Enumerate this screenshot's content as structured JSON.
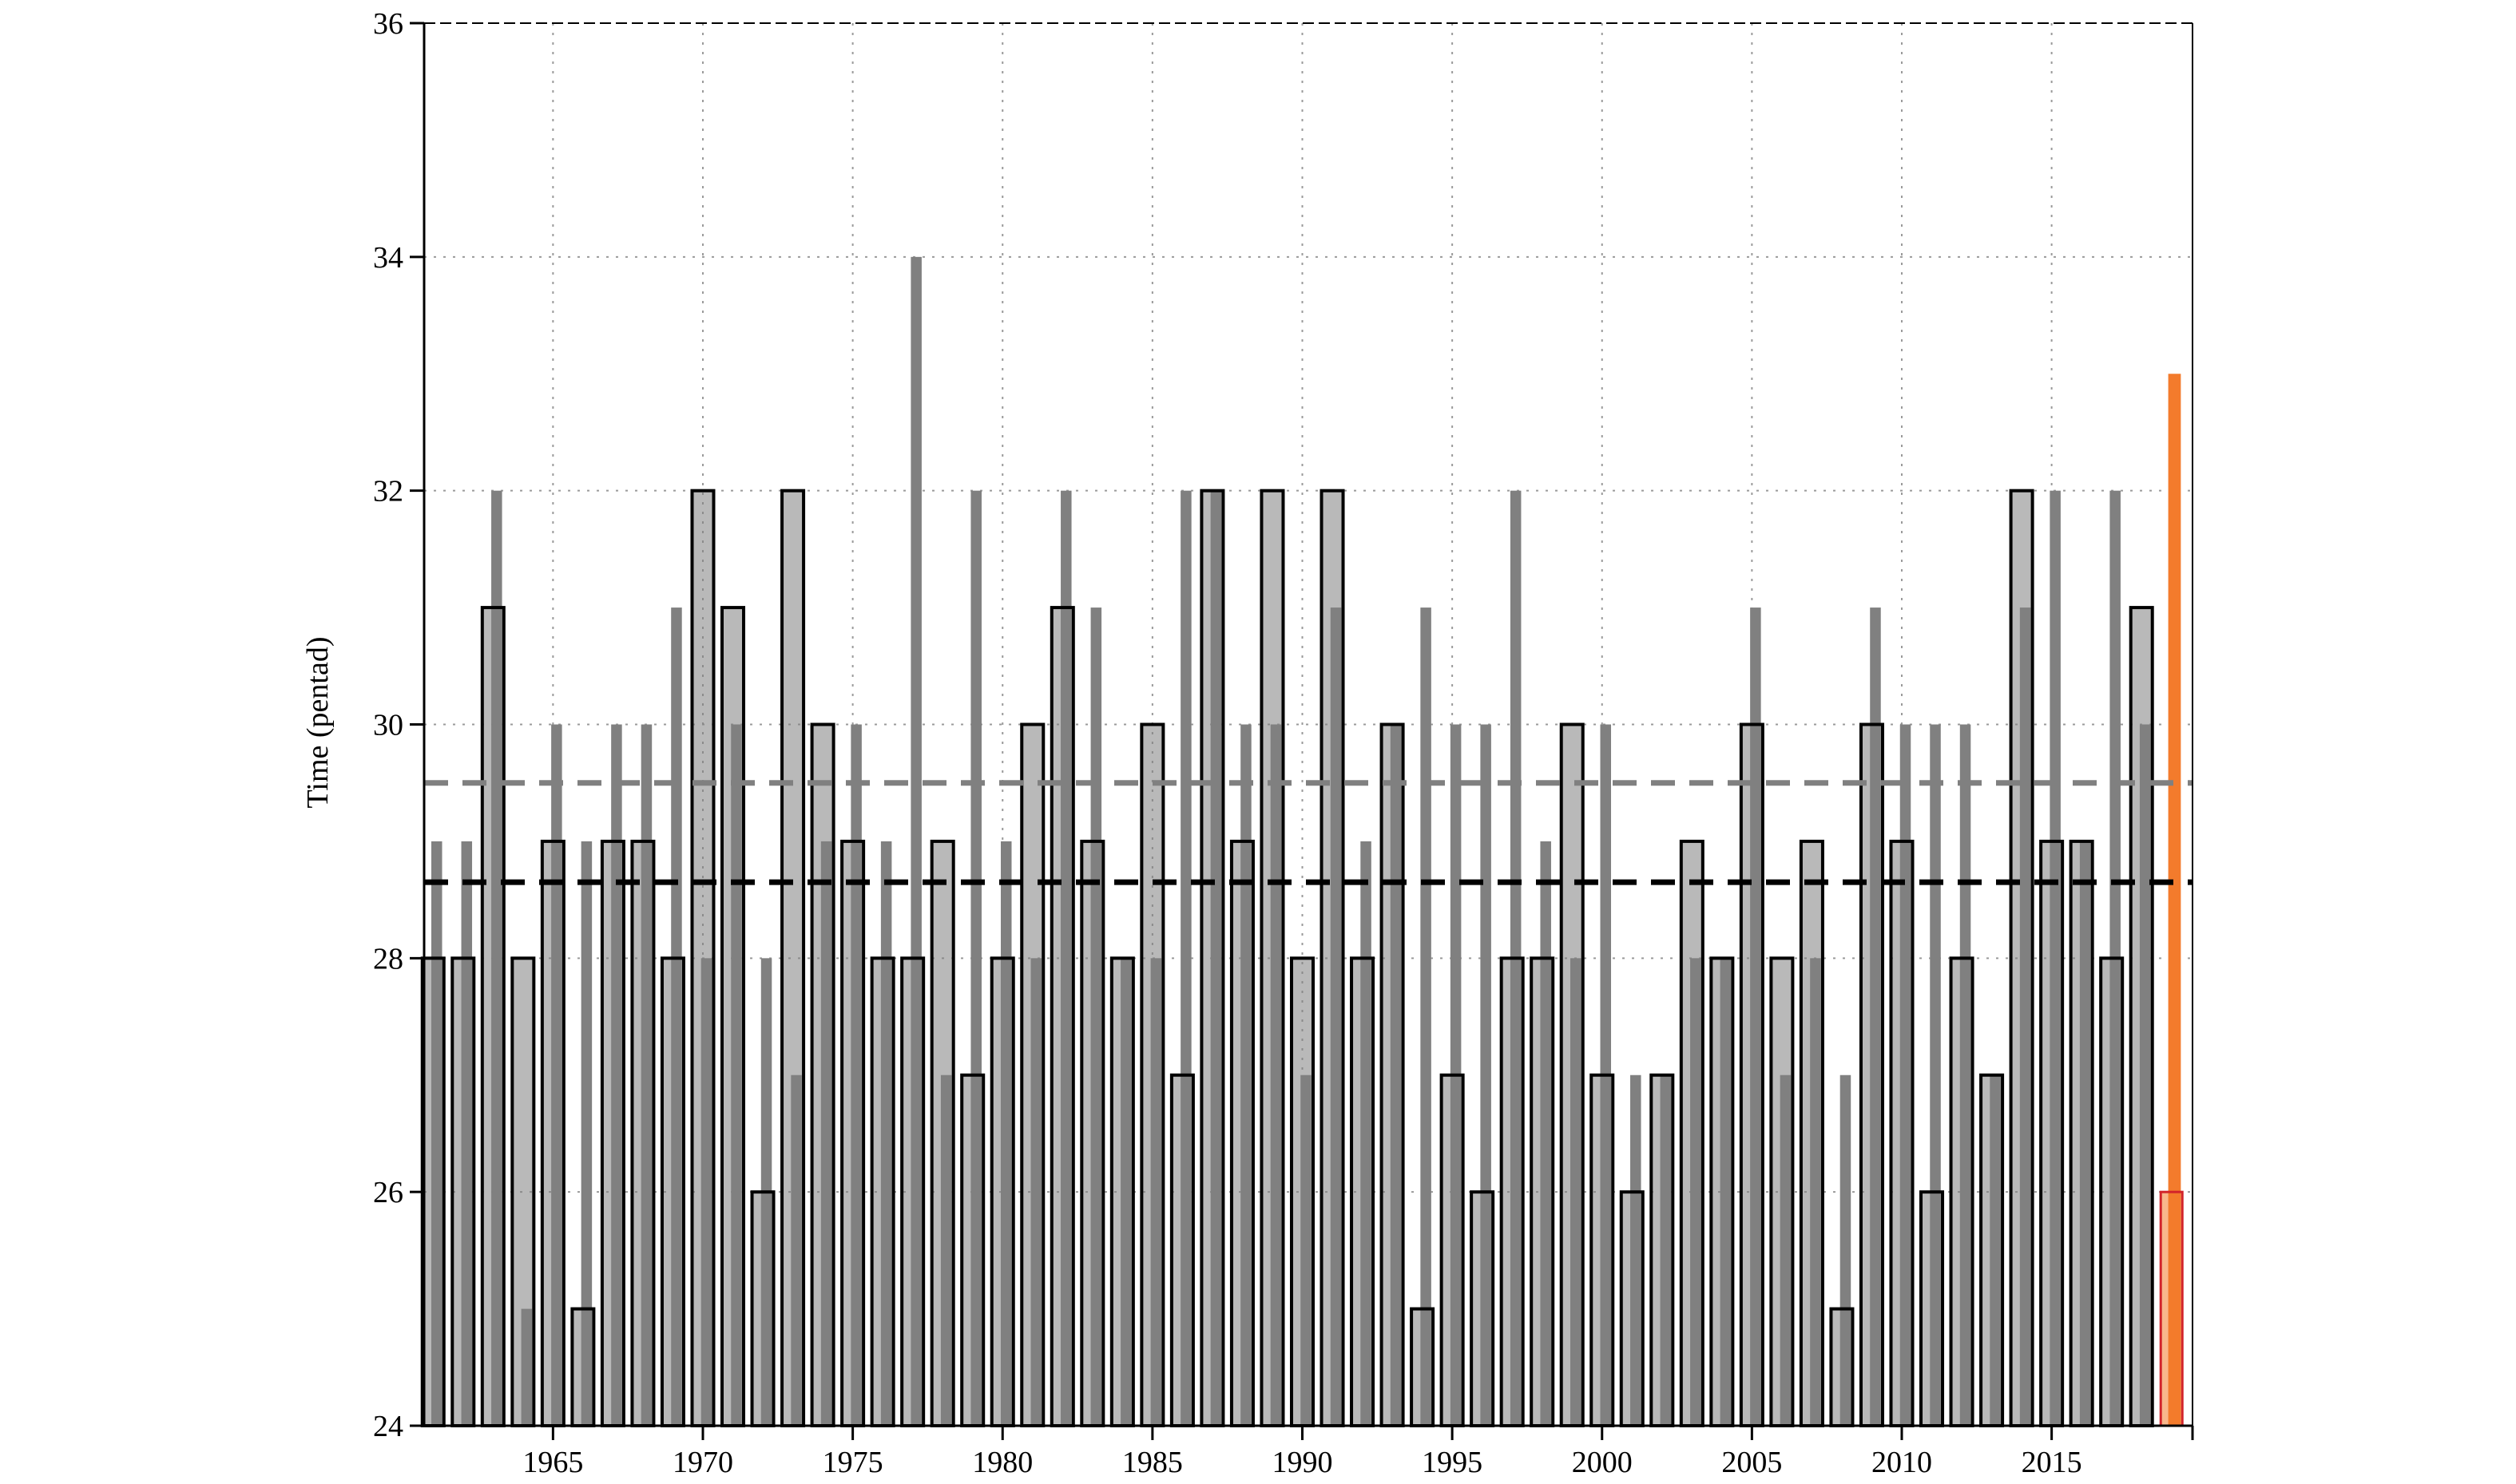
{
  "chart_data": {
    "type": "bar",
    "title": "",
    "xlabel": "",
    "ylabel": "Time (pentad)",
    "ylim": [
      24,
      36
    ],
    "yticks": [
      "24",
      "26",
      "28",
      "30",
      "32",
      "34",
      "36"
    ],
    "xlim": [
      1960.7,
      2019.7
    ],
    "xticks": [
      "1965",
      "1970",
      "1975",
      "1980",
      "1985",
      "1990",
      "1995",
      "2000",
      "2005",
      "2010",
      "2015"
    ],
    "grid": true,
    "legend": "none",
    "years": [
      1961,
      1962,
      1963,
      1964,
      1965,
      1966,
      1967,
      1968,
      1969,
      1970,
      1971,
      1972,
      1973,
      1974,
      1975,
      1976,
      1977,
      1978,
      1979,
      1980,
      1981,
      1982,
      1983,
      1984,
      1985,
      1986,
      1987,
      1988,
      1989,
      1990,
      1991,
      1992,
      1993,
      1994,
      1995,
      1996,
      1997,
      1998,
      1999,
      2000,
      2001,
      2002,
      2003,
      2004,
      2005,
      2006,
      2007,
      2008,
      2009,
      2010,
      2011,
      2012,
      2013,
      2014,
      2015,
      2016,
      2017,
      2018
    ],
    "series": [
      {
        "style": "gray filled bar",
        "color": "#808080",
        "values": [
          29,
          29,
          32,
          25,
          30,
          29,
          30,
          30,
          31,
          28,
          30,
          28,
          27,
          29,
          30,
          29,
          34,
          27,
          32,
          29,
          28,
          32,
          31,
          28,
          28,
          32,
          32,
          30,
          30,
          27,
          31,
          29,
          30,
          31,
          30,
          30,
          32,
          29,
          28,
          30,
          27,
          27,
          28,
          28,
          31,
          27,
          28,
          27,
          31,
          30,
          30,
          30,
          27,
          31,
          32,
          29,
          32,
          30
        ]
      },
      {
        "style": "black outlined bar",
        "color": "#000000",
        "values": [
          28,
          28,
          31,
          28,
          29,
          25,
          29,
          29,
          28,
          32,
          31,
          26,
          32,
          30,
          29,
          28,
          28,
          29,
          27,
          28,
          30,
          31,
          29,
          28,
          30,
          27,
          32,
          29,
          32,
          28,
          32,
          28,
          30,
          25,
          27,
          26,
          28,
          28,
          30,
          27,
          26,
          27,
          29,
          28,
          30,
          28,
          29,
          25,
          30,
          29,
          26,
          28,
          27,
          32,
          29,
          29,
          28,
          31
        ]
      },
      {
        "style": "orange filled bar",
        "color": "#f37b2c",
        "x": [
          2019
        ],
        "values": [
          33
        ]
      },
      {
        "style": "red outlined bar",
        "color": "#d2232a",
        "x": [
          2019
        ],
        "values": [
          26
        ]
      }
    ],
    "reference_lines": [
      {
        "style": "dashed",
        "color": "#808080",
        "value": 29.5
      },
      {
        "style": "dashed",
        "color": "#000000",
        "value": 28.65
      }
    ]
  }
}
